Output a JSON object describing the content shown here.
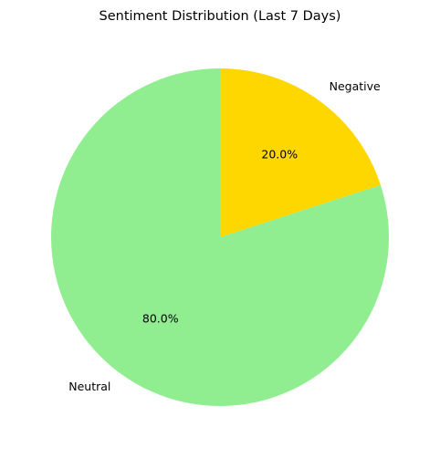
{
  "chart_data": {
    "type": "pie",
    "title": "Sentiment Distribution (Last 7 Days)",
    "start_angle_deg": 90,
    "direction": "clockwise",
    "slices": [
      {
        "label": "Negative",
        "value": 20.0,
        "pct_label": "20.0%",
        "color": "#ffd700"
      },
      {
        "label": "Neutral",
        "value": 80.0,
        "pct_label": "80.0%",
        "color": "#90ee90"
      }
    ]
  }
}
